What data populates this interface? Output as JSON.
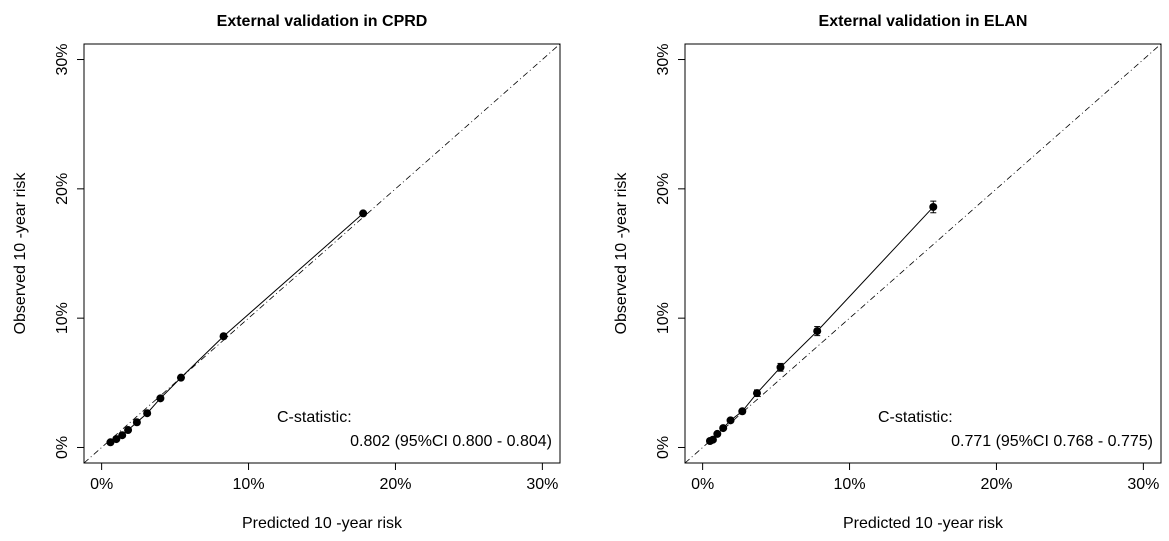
{
  "chart_data": [
    {
      "type": "scatter",
      "title": "External validation in CPRD",
      "xlabel": "Predicted 10 -year risk",
      "ylabel": "Observed 10 -year risk",
      "xlim": [
        0,
        30
      ],
      "ylim": [
        0,
        30
      ],
      "xticks": [
        0,
        10,
        20,
        30
      ],
      "yticks": [
        0,
        10,
        20,
        30
      ],
      "tick_labels_x": [
        "0%",
        "10%",
        "20%",
        "30%"
      ],
      "tick_labels_y": [
        "0%",
        "10%",
        "20%",
        "30%"
      ],
      "reference_line": "y = x (dash-dot)",
      "points": [
        {
          "x": 0.6,
          "y": 0.4,
          "err": 0.05
        },
        {
          "x": 1.0,
          "y": 0.65,
          "err": 0.05
        },
        {
          "x": 1.4,
          "y": 0.95,
          "err": 0.05
        },
        {
          "x": 1.8,
          "y": 1.35,
          "err": 0.05
        },
        {
          "x": 2.4,
          "y": 1.95,
          "err": 0.05
        },
        {
          "x": 3.1,
          "y": 2.65,
          "err": 0.05
        },
        {
          "x": 4.0,
          "y": 3.8,
          "err": 0.06
        },
        {
          "x": 5.4,
          "y": 5.4,
          "err": 0.07
        },
        {
          "x": 8.3,
          "y": 8.6,
          "err": 0.09
        },
        {
          "x": 17.8,
          "y": 18.1,
          "err": 0.12
        }
      ],
      "annotation": {
        "line1": "C-statistic:",
        "line2": "0.802 (95%CI 0.800 - 0.804)"
      }
    },
    {
      "type": "scatter",
      "title": "External validation in ELAN",
      "xlabel": "Predicted 10 -year risk",
      "ylabel": "Observed 10 -year risk",
      "xlim": [
        0,
        30
      ],
      "ylim": [
        0,
        30
      ],
      "xticks": [
        0,
        10,
        20,
        30
      ],
      "yticks": [
        0,
        10,
        20,
        30
      ],
      "tick_labels_x": [
        "0%",
        "10%",
        "20%",
        "30%"
      ],
      "tick_labels_y": [
        "0%",
        "10%",
        "20%",
        "30%"
      ],
      "reference_line": "y = x (dash-dot)",
      "points": [
        {
          "x": 0.5,
          "y": 0.5,
          "err": 0.1
        },
        {
          "x": 0.7,
          "y": 0.6,
          "err": 0.1
        },
        {
          "x": 1.0,
          "y": 1.05,
          "err": 0.1
        },
        {
          "x": 1.4,
          "y": 1.5,
          "err": 0.12
        },
        {
          "x": 1.9,
          "y": 2.1,
          "err": 0.15
        },
        {
          "x": 2.7,
          "y": 2.8,
          "err": 0.18
        },
        {
          "x": 3.7,
          "y": 4.2,
          "err": 0.25
        },
        {
          "x": 5.3,
          "y": 6.2,
          "err": 0.3
        },
        {
          "x": 7.8,
          "y": 9.0,
          "err": 0.35
        },
        {
          "x": 15.7,
          "y": 18.6,
          "err": 0.45
        }
      ],
      "annotation": {
        "line1": "C-statistic:",
        "line2": "0.771 (95%CI 0.768 - 0.775)"
      }
    }
  ]
}
